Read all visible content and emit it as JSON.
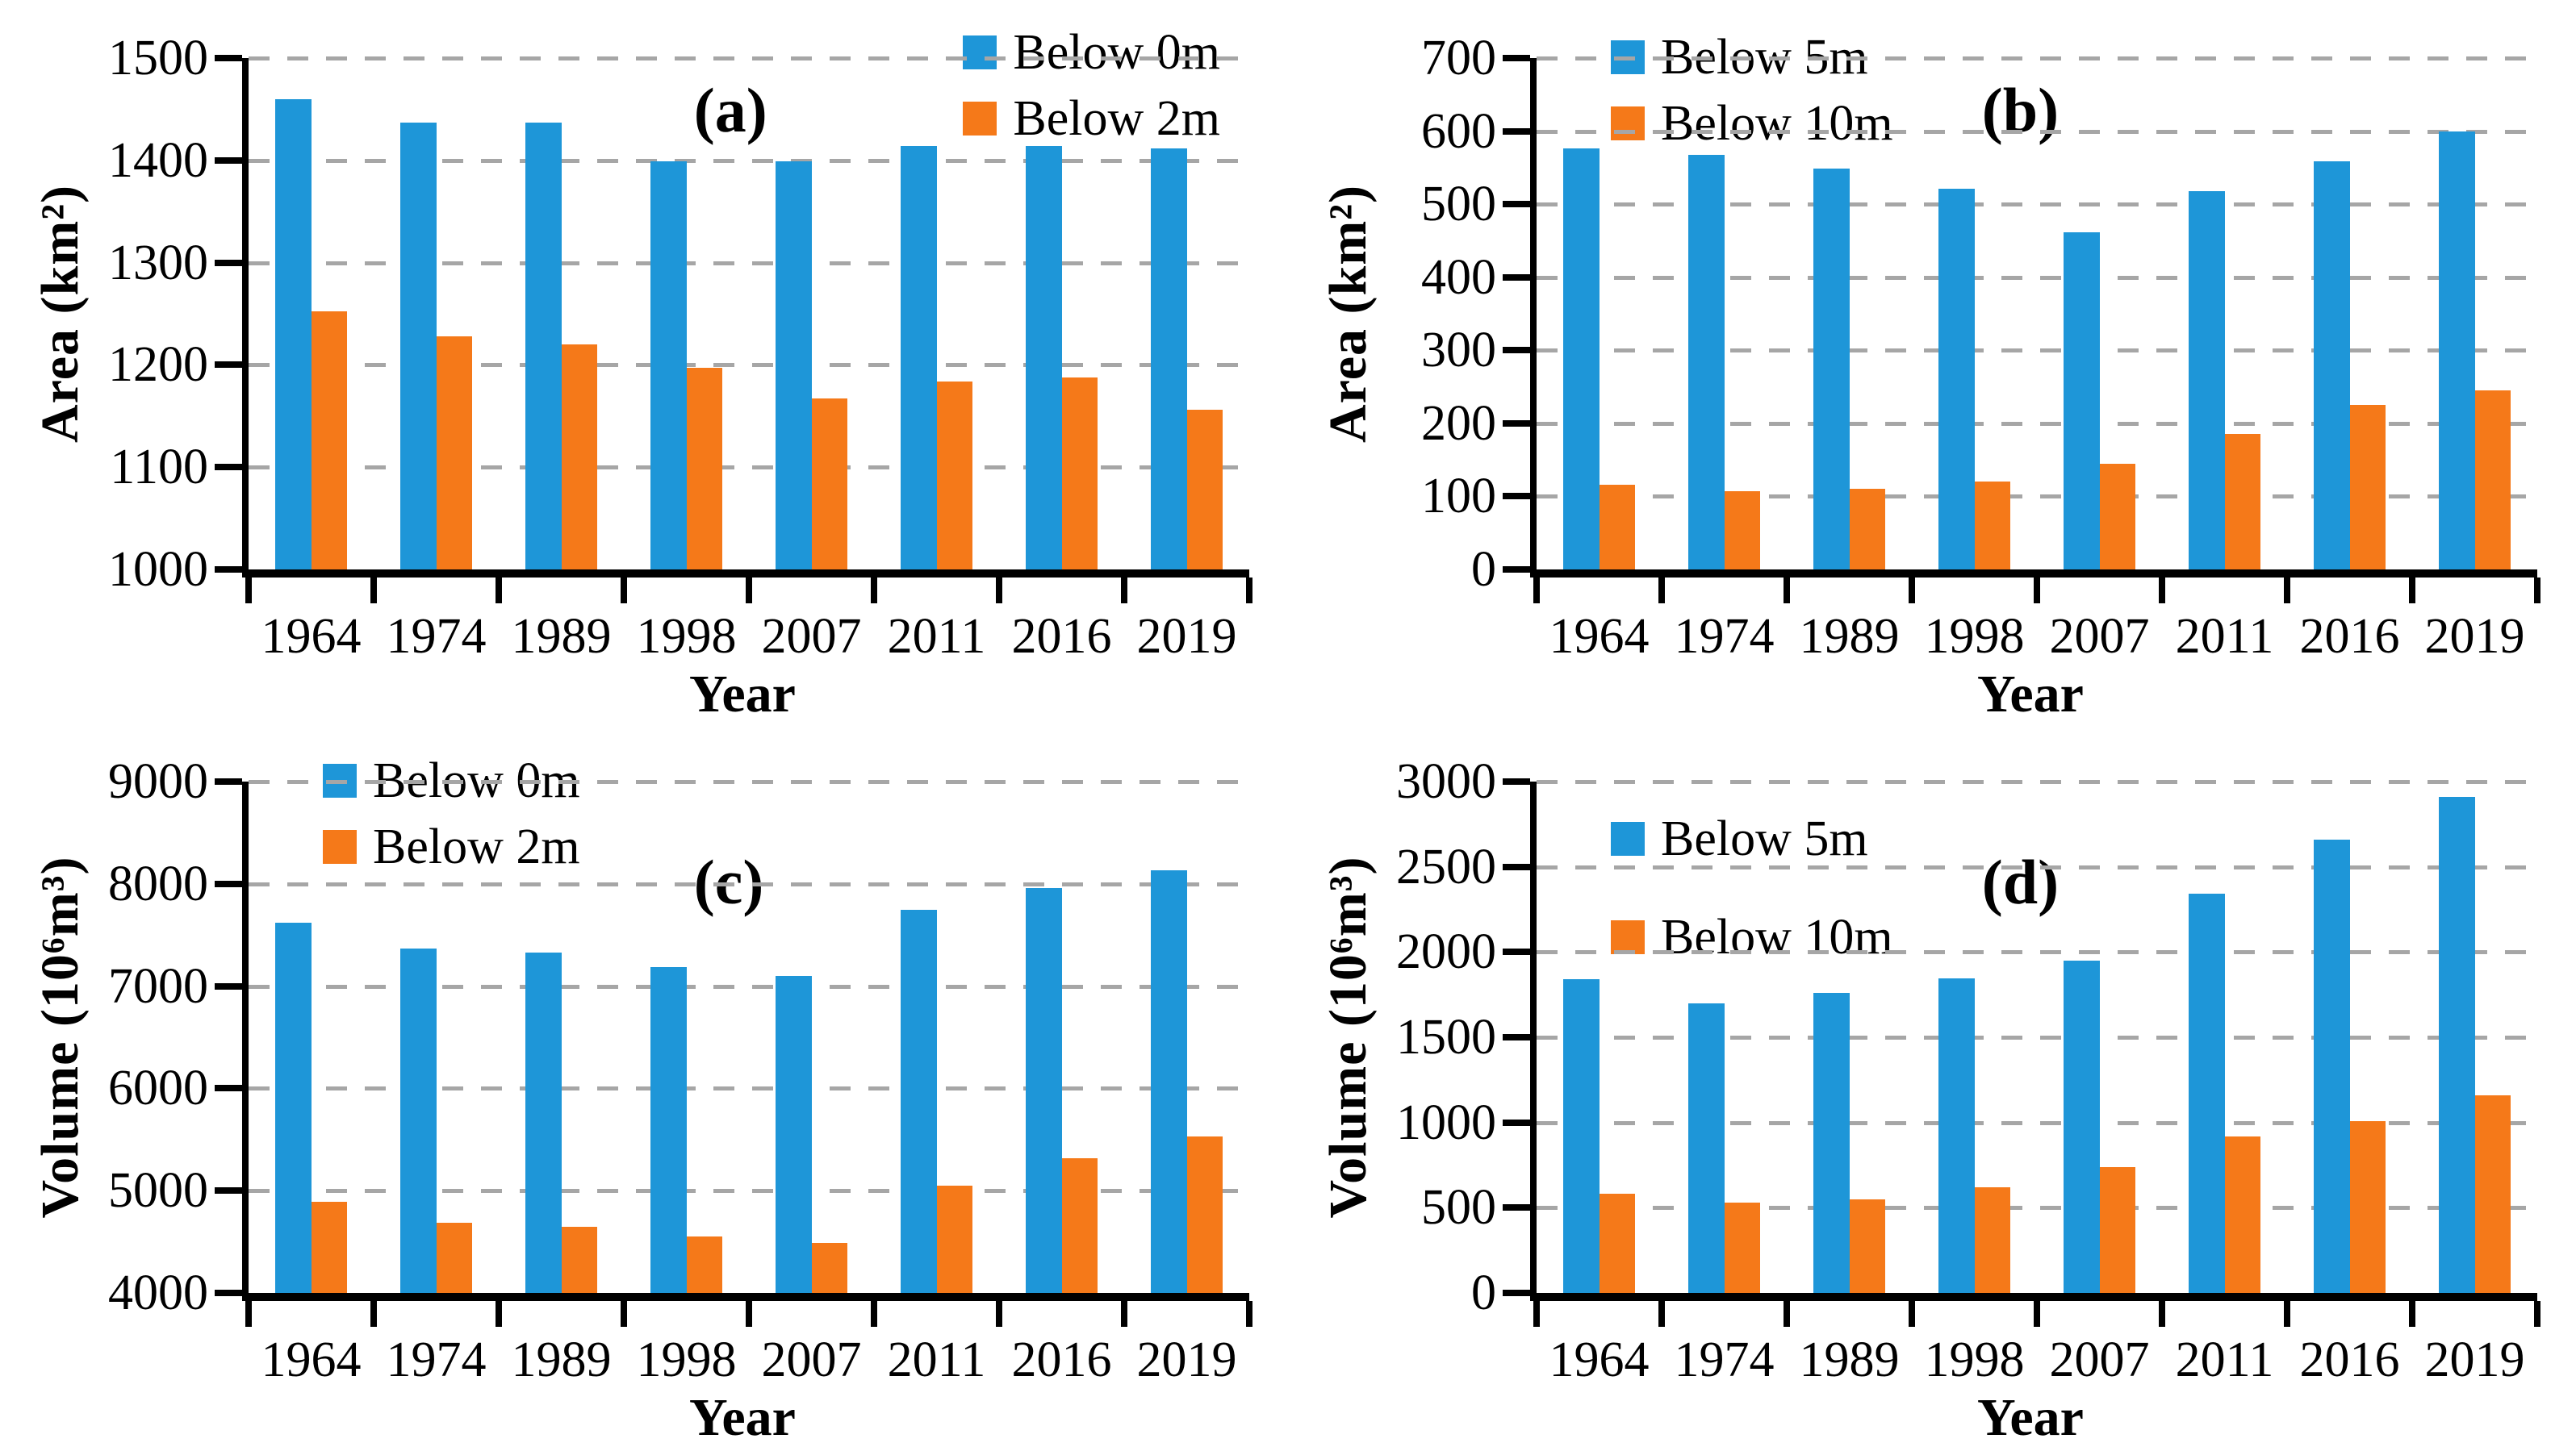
{
  "figure": {
    "background": "#ffffff",
    "axis_color": "#000000",
    "grid_color": "#a6a6a6",
    "text_color": "#000000",
    "series_colors": {
      "blue": "#1e96d8",
      "orange": "#f57919"
    }
  },
  "chart_data": [
    {
      "type": "bar",
      "panel_label": "(a)",
      "xlabel": "Year",
      "ylabel": "Area (km²)",
      "categories": [
        "1964",
        "1974",
        "1989",
        "1998",
        "2007",
        "2011",
        "2016",
        "2019"
      ],
      "series": [
        {
          "name": "Below 0m",
          "color": "#1e96d8",
          "values": [
            1460,
            1437,
            1437,
            1399,
            1399,
            1414,
            1414,
            1412
          ]
        },
        {
          "name": "Below 2m",
          "color": "#f57919",
          "values": [
            1252,
            1228,
            1220,
            1197,
            1167,
            1184,
            1188,
            1156
          ]
        }
      ],
      "ylim": [
        1000,
        1500
      ],
      "ytick_step": 100,
      "grid": true,
      "legend_position": "top-right"
    },
    {
      "type": "bar",
      "panel_label": "(b)",
      "xlabel": "Year",
      "ylabel": "Area (km²)",
      "categories": [
        "1964",
        "1974",
        "1989",
        "1998",
        "2007",
        "2011",
        "2016",
        "2019"
      ],
      "series": [
        {
          "name": "Below 5m",
          "color": "#1e96d8",
          "values": [
            576,
            567,
            549,
            521,
            462,
            518,
            559,
            600
          ]
        },
        {
          "name": "Below 10m",
          "color": "#f57919",
          "values": [
            116,
            107,
            110,
            120,
            145,
            185,
            225,
            245
          ]
        }
      ],
      "ylim": [
        0,
        700
      ],
      "ytick_step": 100,
      "grid": true,
      "legend_position": "top-left"
    },
    {
      "type": "bar",
      "panel_label": "(c)",
      "xlabel": "Year",
      "ylabel": "Volume (10⁶m³)",
      "categories": [
        "1964",
        "1974",
        "1989",
        "1998",
        "2007",
        "2011",
        "2016",
        "2019"
      ],
      "series": [
        {
          "name": "Below 0m",
          "color": "#1e96d8",
          "values": [
            7620,
            7370,
            7330,
            7190,
            7100,
            7750,
            7960,
            8130
          ]
        },
        {
          "name": "Below 2m",
          "color": "#f57919",
          "values": [
            4890,
            4690,
            4650,
            4550,
            4490,
            5050,
            5320,
            5530
          ]
        }
      ],
      "ylim": [
        4000,
        9000
      ],
      "ytick_step": 1000,
      "grid": true,
      "legend_position": "top-left"
    },
    {
      "type": "bar",
      "panel_label": "(d)",
      "xlabel": "Year",
      "ylabel": "Volume (10⁶m³)",
      "categories": [
        "1964",
        "1974",
        "1989",
        "1998",
        "2007",
        "2011",
        "2016",
        "2019"
      ],
      "series": [
        {
          "name": "Below 5m",
          "color": "#1e96d8",
          "values": [
            1840,
            1700,
            1760,
            1845,
            1950,
            2340,
            2660,
            2910
          ]
        },
        {
          "name": "Below 10m",
          "color": "#f57919",
          "values": [
            580,
            530,
            550,
            620,
            740,
            920,
            1010,
            1160
          ]
        }
      ],
      "ylim": [
        0,
        3000
      ],
      "ytick_step": 500,
      "grid": true,
      "legend_position": "top-left-low"
    }
  ]
}
